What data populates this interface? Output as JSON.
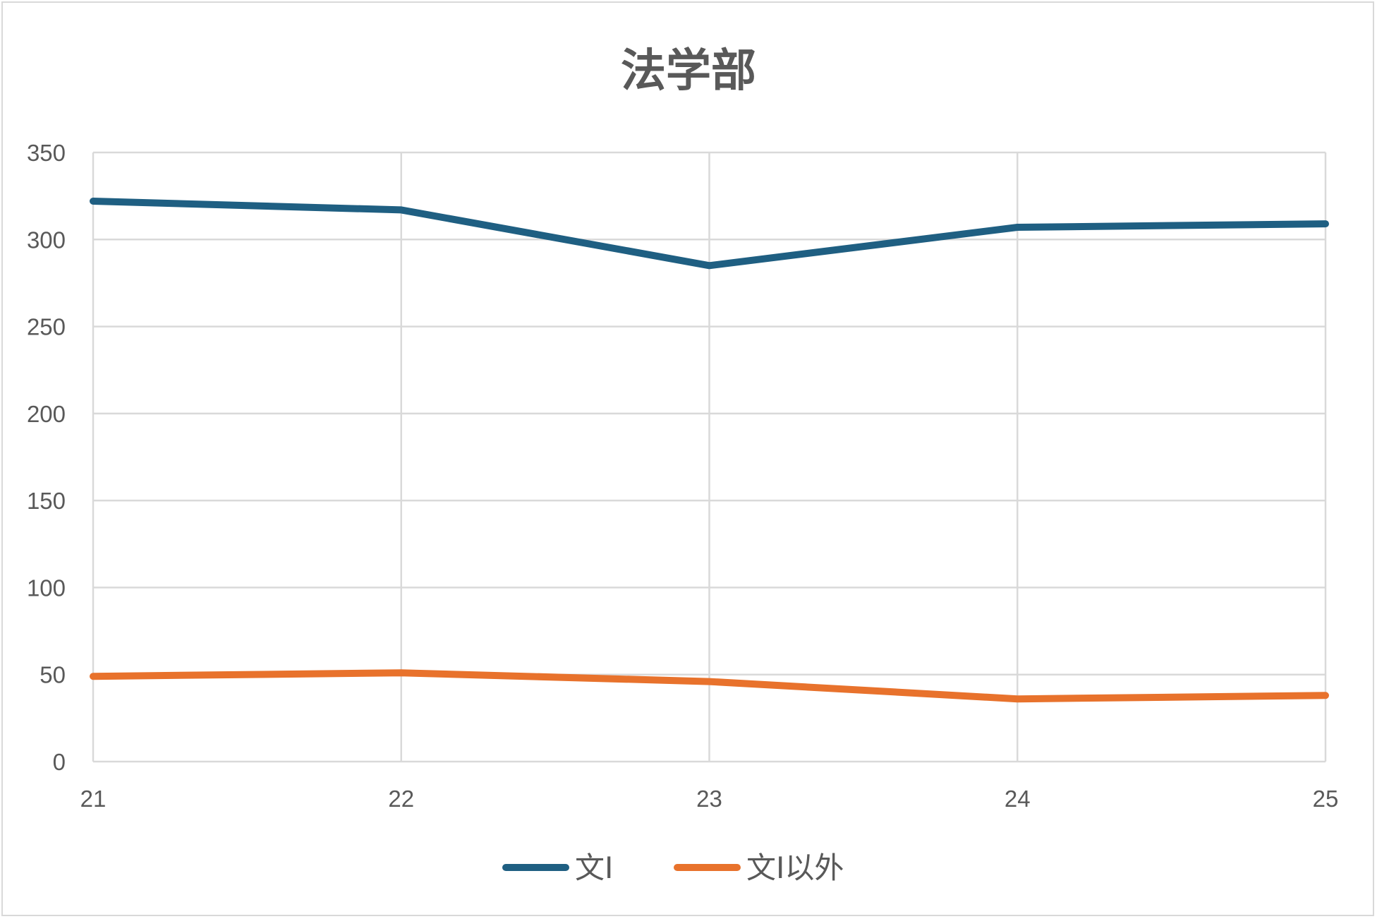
{
  "chart_data": {
    "type": "line",
    "title": "法学部",
    "xlabel": "",
    "ylabel": "",
    "categories": [
      "21",
      "22",
      "23",
      "24",
      "25"
    ],
    "ylim": [
      0,
      350
    ],
    "yticks": [
      "0",
      "50",
      "100",
      "150",
      "200",
      "250",
      "300",
      "350"
    ],
    "grid": true,
    "legend_position": "bottom",
    "series": [
      {
        "name": "文Ⅰ",
        "color": "#1f5f82",
        "values": [
          322,
          317,
          285,
          307,
          309
        ]
      },
      {
        "name": "文Ⅰ以外",
        "color": "#e8722c",
        "values": [
          49,
          51,
          46,
          36,
          38
        ]
      }
    ]
  }
}
